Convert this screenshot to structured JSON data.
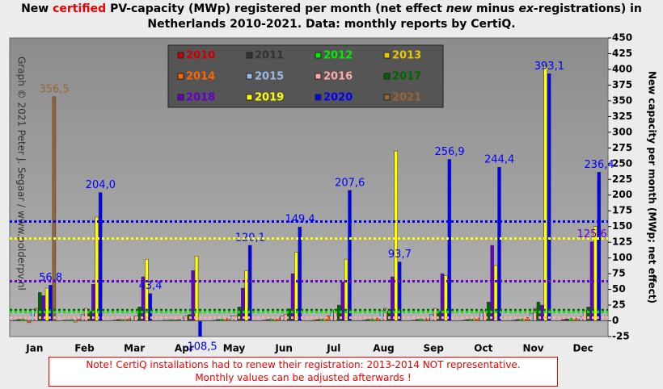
{
  "chart_data": {
    "type": "bar",
    "title": [
      "New ",
      "certified",
      " PV-capacity (MWp) registered per month (net effect ",
      "new",
      " minus ",
      "ex-",
      "registrations) in Netherlands 2010-2021. Data: monthly reports by CertiQ."
    ],
    "y_label": "New capacity per month (MWp; net effect)",
    "credit": "Graph © 2021 Peter J. Segaar / www.polderpv.nl",
    "note": [
      "Note! CertiQ installations  had to renew their registration: 2013-2014 NOT representative.",
      "Monthly values can be adjusted afterwards !"
    ],
    "categories": [
      "Jan",
      "Feb",
      "Mar",
      "Apr",
      "May",
      "Jun",
      "Jul",
      "Aug",
      "Sep",
      "Oct",
      "Nov",
      "Dec"
    ],
    "ylim": [
      -25,
      450
    ],
    "yticks": [
      -25,
      0,
      25,
      50,
      75,
      100,
      125,
      150,
      175,
      200,
      225,
      250,
      275,
      300,
      325,
      350,
      375,
      400,
      425,
      450
    ],
    "series": [
      {
        "name": "2010",
        "color": "#cc0000",
        "values": [
          1,
          1,
          1,
          1,
          1,
          1,
          1,
          1,
          1,
          1,
          1,
          2
        ]
      },
      {
        "name": "2011",
        "color": "#333333",
        "values": [
          2,
          1,
          2,
          1,
          2,
          2,
          2,
          2,
          2,
          2,
          2,
          3
        ]
      },
      {
        "name": "2012",
        "color": "#00ee00",
        "values": [
          3,
          2,
          2,
          2,
          3,
          3,
          3,
          3,
          3,
          3,
          3,
          4
        ]
      },
      {
        "name": "2013",
        "color": "#e6c800",
        "values": [
          2,
          -2,
          2,
          1,
          2,
          2,
          3,
          2,
          2,
          3,
          3,
          2
        ]
      },
      {
        "name": "2014",
        "color": "#ff6600",
        "values": [
          -3,
          3,
          3,
          2,
          4,
          5,
          8,
          4,
          4,
          4,
          5,
          4
        ]
      },
      {
        "name": "2015",
        "color": "#99bbdd",
        "values": [
          18,
          10,
          6,
          5,
          8,
          8,
          16,
          16,
          10,
          14,
          12,
          6
        ]
      },
      {
        "name": "2016",
        "color": "#ffaaaa",
        "values": [
          20,
          20,
          8,
          8,
          8,
          10,
          18,
          20,
          20,
          16,
          20,
          16
        ]
      },
      {
        "name": "2017",
        "color": "#006600",
        "values": [
          45,
          15,
          22,
          10,
          22,
          19,
          25,
          15,
          15,
          30,
          30,
          22
        ]
      },
      {
        "name": "2018",
        "color": "#6600cc",
        "values": [
          40,
          58,
          70,
          80,
          52,
          75,
          62,
          70,
          75,
          120,
          25,
          125.6
        ],
        "value_labels": [
          null,
          null,
          null,
          null,
          null,
          null,
          null,
          null,
          null,
          null,
          null,
          "125,6"
        ]
      },
      {
        "name": "2019",
        "color": "#ffff00",
        "values": [
          52,
          165,
          98,
          103,
          80,
          109,
          98,
          270,
          72,
          88,
          408,
          150
        ]
      },
      {
        "name": "2020",
        "color": "#0000ff",
        "values": [
          56.8,
          204.0,
          43.4,
          -108.5,
          120.1,
          149.4,
          207.6,
          93.7,
          256.9,
          244.4,
          393.1,
          236.4
        ],
        "value_labels": [
          "56,8",
          "204,0",
          "43,4",
          "-108,5",
          "120,1",
          "149,4",
          "207,6",
          "93,7",
          "256,9",
          "244,4",
          "393,1",
          "236,4"
        ]
      },
      {
        "name": "2021",
        "color": "#996633",
        "values": [
          356.5,
          null,
          null,
          null,
          null,
          null,
          null,
          null,
          null,
          null,
          null,
          null
        ],
        "value_labels": [
          "356,5",
          null,
          null,
          null,
          null,
          null,
          null,
          null,
          null,
          null,
          null,
          null
        ]
      }
    ],
    "reference_lines": [
      {
        "value": 158,
        "color": "#0000ff"
      },
      {
        "value": 131,
        "color": "#ffff00"
      },
      {
        "value": 63,
        "color": "#6600cc"
      },
      {
        "value": 17,
        "color": "#006600"
      },
      {
        "value": 14,
        "color": "#00ee00"
      },
      {
        "value": 5,
        "color": "#ffaaaa"
      }
    ],
    "legend": "top-center"
  }
}
